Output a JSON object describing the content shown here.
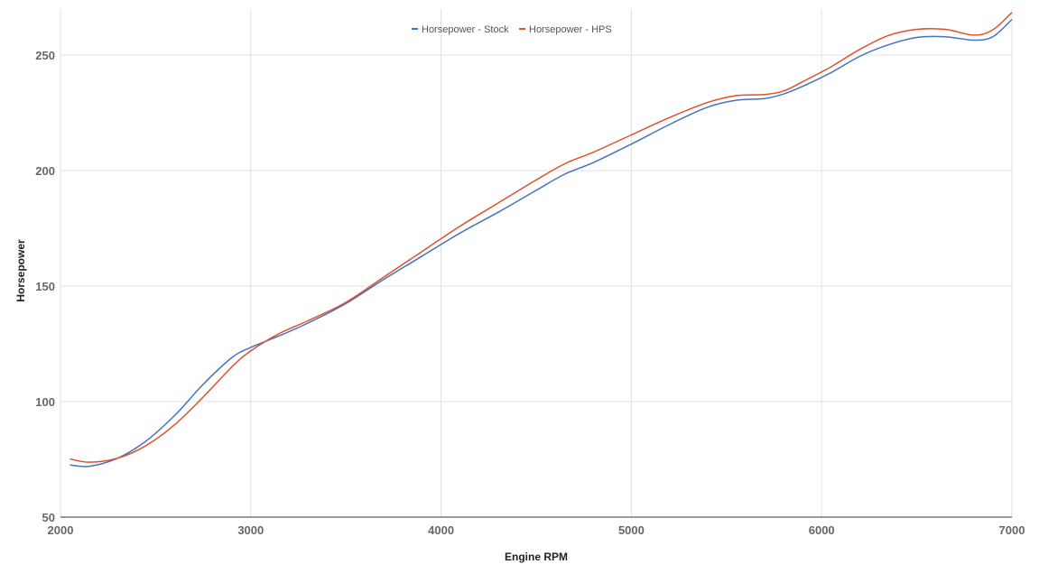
{
  "chart_data": {
    "type": "line",
    "title": "",
    "xlabel": "Engine RPM",
    "ylabel": "Horsepower",
    "xlim": [
      2000,
      7000
    ],
    "ylim": [
      50,
      270
    ],
    "x_ticks": [
      2000,
      3000,
      4000,
      5000,
      6000,
      7000
    ],
    "y_ticks": [
      50,
      100,
      150,
      200,
      250
    ],
    "grid": true,
    "legend_position": "top-center",
    "series": [
      {
        "name": "Horsepower - Stock",
        "color": "#4472C4",
        "x": [
          2050,
          2150,
          2300,
          2450,
          2600,
          2750,
          2900,
          3000,
          3150,
          3300,
          3500,
          3700,
          3900,
          4100,
          4300,
          4500,
          4650,
          4800,
          5000,
          5200,
          5400,
          5550,
          5700,
          5800,
          5900,
          6050,
          6200,
          6350,
          6500,
          6650,
          6800,
          6900,
          7000
        ],
        "y": [
          72.6,
          72,
          75.5,
          83,
          94,
          107.5,
          119,
          123.5,
          128.5,
          134,
          142.5,
          153,
          163,
          173,
          182,
          191.5,
          198.5,
          203.5,
          211.5,
          220,
          227.5,
          230.5,
          231.2,
          233.2,
          236.5,
          242.5,
          249.5,
          254.5,
          257.7,
          258,
          256.5,
          258,
          265.5
        ]
      },
      {
        "name": "Horsepower - HPS",
        "color": "#E0502B",
        "x": [
          2050,
          2150,
          2300,
          2450,
          2600,
          2750,
          2900,
          3000,
          3150,
          3300,
          3500,
          3700,
          3900,
          4100,
          4300,
          4500,
          4650,
          4800,
          5000,
          5200,
          5400,
          5550,
          5700,
          5800,
          5900,
          6050,
          6200,
          6350,
          6500,
          6650,
          6800,
          6900,
          7000
        ],
        "y": [
          75.2,
          73.8,
          75.5,
          81,
          90,
          102,
          115,
          122,
          129.5,
          135,
          143,
          154,
          165,
          176,
          186,
          196,
          203,
          208,
          215.5,
          223,
          229.5,
          232.5,
          233,
          234.5,
          238.5,
          245,
          252.5,
          258.5,
          261.2,
          261.2,
          258.7,
          261,
          268.5
        ]
      }
    ]
  }
}
